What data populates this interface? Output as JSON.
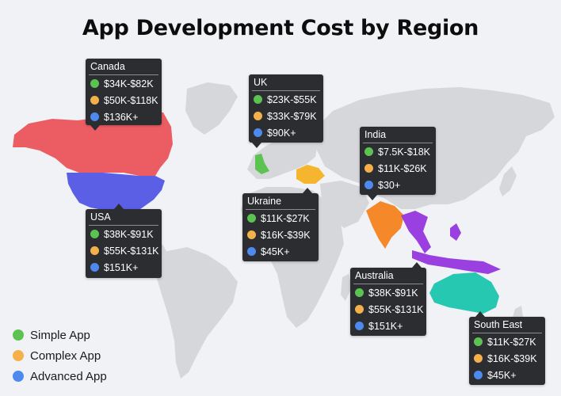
{
  "title": "App Development Cost by Region",
  "colors": {
    "simple": "#5cc352",
    "complex": "#f5b04c",
    "advanced": "#4d89ee",
    "land": "#d6d7db",
    "canada": "#ec5d63",
    "usa": "#5a5fe6",
    "uk": "#5cc352",
    "ukraine": "#f5b52e",
    "india": "#f5892a",
    "southeast": "#9a3fe0",
    "australia": "#27c8b2"
  },
  "legend": [
    {
      "key": "simple",
      "label": "Simple App"
    },
    {
      "key": "complex",
      "label": "Complex App"
    },
    {
      "key": "advanced",
      "label": "Advanced App"
    }
  ],
  "regions": {
    "canada": {
      "name": "Canada",
      "simple": "$34K-$82K",
      "complex": "$50K-$118K",
      "advanced": "$136K+"
    },
    "usa": {
      "name": "USA",
      "simple": "$38K-$91K",
      "complex": "$55K-$131K",
      "advanced": "$151K+"
    },
    "uk": {
      "name": "UK",
      "simple": "$23K-$55K",
      "complex": "$33K-$79K",
      "advanced": "$90K+"
    },
    "ukraine": {
      "name": "Ukraine",
      "simple": "$11K-$27K",
      "complex": "$16K-$39K",
      "advanced": "$45K+"
    },
    "india": {
      "name": "India",
      "simple": "$7.5K-$18K",
      "complex": "$11K-$26K",
      "advanced": "$30+"
    },
    "australia": {
      "name": "Australia",
      "simple": "$38K-$91K",
      "complex": "$55K-$131K",
      "advanced": "$151K+"
    },
    "southeast": {
      "name": "South East",
      "simple": "$11K-$27K",
      "complex": "$16K-$39K",
      "advanced": "$45K+"
    }
  }
}
